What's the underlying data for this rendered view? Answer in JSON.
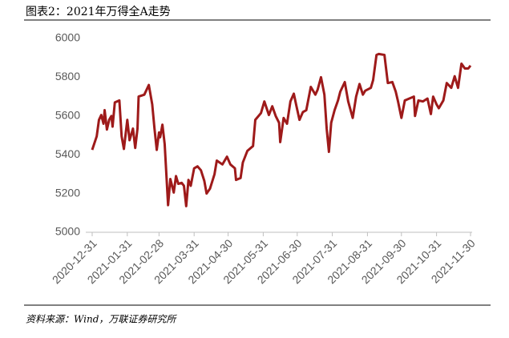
{
  "header": {
    "title": "图表2：2021年万得全A走势"
  },
  "chart_data": {
    "type": "line",
    "x": [
      "2020-12-31",
      "2021-01-04",
      "2021-01-06",
      "2021-01-08",
      "2021-01-10",
      "2021-01-11",
      "2021-01-13",
      "2021-01-15",
      "2021-01-17",
      "2021-01-18",
      "2021-01-20",
      "2021-01-24",
      "2021-01-26",
      "2021-01-28",
      "2021-01-31",
      "2021-02-02",
      "2021-02-05",
      "2021-02-07",
      "2021-02-09",
      "2021-02-10",
      "2021-02-15",
      "2021-02-19",
      "2021-02-22",
      "2021-02-24",
      "2021-02-26",
      "2021-02-28",
      "2021-03-01",
      "2021-03-03",
      "2021-03-05",
      "2021-03-08",
      "2021-03-10",
      "2021-03-13",
      "2021-03-15",
      "2021-03-17",
      "2021-03-20",
      "2021-03-22",
      "2021-03-24",
      "2021-03-26",
      "2021-03-28",
      "2021-03-31",
      "2021-04-03",
      "2021-04-06",
      "2021-04-09",
      "2021-04-11",
      "2021-04-14",
      "2021-04-18",
      "2021-04-20",
      "2021-04-25",
      "2021-04-29",
      "2021-05-02",
      "2021-05-06",
      "2021-05-07",
      "2021-05-11",
      "2021-05-13",
      "2021-05-17",
      "2021-05-22",
      "2021-05-24",
      "2021-05-29",
      "2021-06-01",
      "2021-06-05",
      "2021-06-08",
      "2021-06-11",
      "2021-06-14",
      "2021-06-15",
      "2021-06-18",
      "2021-06-21",
      "2021-06-24",
      "2021-06-27",
      "2021-06-29",
      "2021-07-02",
      "2021-07-05",
      "2021-07-08",
      "2021-07-12",
      "2021-07-16",
      "2021-07-18",
      "2021-07-21",
      "2021-07-24",
      "2021-07-26",
      "2021-07-28",
      "2021-07-30",
      "2021-08-02",
      "2021-08-05",
      "2021-08-07",
      "2021-08-11",
      "2021-08-14",
      "2021-08-18",
      "2021-08-21",
      "2021-08-24",
      "2021-08-27",
      "2021-08-29",
      "2021-09-03",
      "2021-09-05",
      "2021-09-08",
      "2021-09-10",
      "2021-09-15",
      "2021-09-18",
      "2021-09-22",
      "2021-09-25",
      "2021-09-27",
      "2021-09-30",
      "2021-10-03",
      "2021-10-07",
      "2021-10-11",
      "2021-10-12",
      "2021-10-15",
      "2021-10-19",
      "2021-10-23",
      "2021-10-26",
      "2021-10-28",
      "2021-10-31",
      "2021-11-02",
      "2021-11-06",
      "2021-11-09",
      "2021-11-13",
      "2021-11-16",
      "2021-11-19",
      "2021-11-22",
      "2021-11-25",
      "2021-11-28",
      "2021-11-30"
    ],
    "series": [
      {
        "color": "#9e1a1a",
        "values": [
          5425,
          5495,
          5580,
          5605,
          5560,
          5630,
          5530,
          5580,
          5600,
          5545,
          5670,
          5680,
          5495,
          5430,
          5580,
          5475,
          5535,
          5435,
          5535,
          5700,
          5710,
          5760,
          5660,
          5535,
          5425,
          5515,
          5490,
          5555,
          5455,
          5140,
          5275,
          5205,
          5290,
          5250,
          5255,
          5240,
          5135,
          5270,
          5240,
          5330,
          5340,
          5320,
          5265,
          5200,
          5225,
          5300,
          5370,
          5350,
          5390,
          5350,
          5330,
          5270,
          5280,
          5360,
          5420,
          5445,
          5580,
          5615,
          5675,
          5605,
          5650,
          5600,
          5565,
          5465,
          5590,
          5560,
          5675,
          5715,
          5660,
          5580,
          5620,
          5630,
          5750,
          5710,
          5735,
          5800,
          5710,
          5535,
          5415,
          5565,
          5630,
          5680,
          5725,
          5775,
          5675,
          5590,
          5700,
          5765,
          5710,
          5730,
          5745,
          5785,
          5915,
          5920,
          5915,
          5770,
          5775,
          5725,
          5675,
          5590,
          5680,
          5690,
          5700,
          5600,
          5680,
          5675,
          5690,
          5610,
          5700,
          5660,
          5640,
          5680,
          5770,
          5745,
          5805,
          5745,
          5870,
          5845,
          5845,
          5860
        ]
      }
    ],
    "xlim": [
      "2020-12-31",
      "2021-11-30"
    ],
    "xticks": [
      "2020-12-31",
      "2021-01-31",
      "2021-02-28",
      "2021-03-31",
      "2021-04-30",
      "2021-05-31",
      "2021-06-30",
      "2021-07-31",
      "2021-08-31",
      "2021-09-30",
      "2021-10-31",
      "2021-11-30"
    ],
    "ylim": [
      5000,
      6000
    ],
    "yticks": [
      5000,
      5200,
      5400,
      5600,
      5800,
      6000
    ],
    "grid": false
  },
  "footer": {
    "source": "资料来源：Wind，万联证券研究所"
  }
}
